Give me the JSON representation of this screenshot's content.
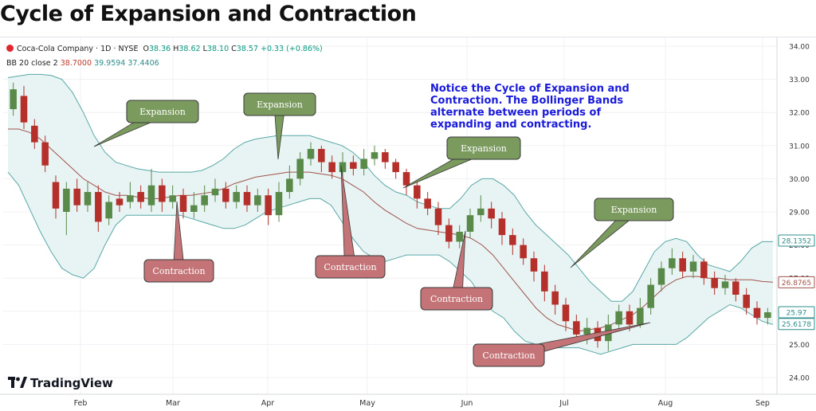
{
  "page_title": "Cycle of Expansion and Contraction",
  "legend": {
    "symbol": "Coca-Cola Company · 1D · NYSE",
    "o_label": "O",
    "o": "38.36",
    "h_label": "H",
    "h": "38.62",
    "l_label": "L",
    "l": "38.10",
    "c_label": "C",
    "c": "38.57",
    "change": "+0.33 (+0.86%)",
    "bb_label": "BB 20 close 2",
    "bb_mid": "38.7000",
    "bb_up": "39.9594",
    "bb_low": "37.4406"
  },
  "brand": "TradingView",
  "colors": {
    "up": "#5a8a4a",
    "down": "#b5302a",
    "band_fill": "#e8f4f4",
    "band_line": "#5aa7a7",
    "basis": "#a0524c",
    "note": "#1a1adb",
    "callout_green": "#7a9a5e",
    "callout_red": "#c47476"
  },
  "chart_data": {
    "type": "candlestick",
    "title": "Cycle of Expansion and Contraction",
    "ylim": [
      23.6,
      34.3
    ],
    "y_ticks": [
      "24.00",
      "25.00",
      "26.00",
      "27.00",
      "28.00",
      "29.00",
      "30.00",
      "31.00",
      "32.00",
      "33.00",
      "34.00"
    ],
    "x_ticks": [
      "Feb",
      "Mar",
      "Apr",
      "May",
      "Jun",
      "Jul",
      "Aug",
      "Sep"
    ],
    "price_labels": [
      {
        "text": "28.1352",
        "value": 28.1352,
        "color": "#2d8c8c"
      },
      {
        "text": "26.8765",
        "value": 26.8765,
        "color": "#a0524c"
      },
      {
        "text": "25.97",
        "value": 25.97,
        "color": "#2d8c8c"
      },
      {
        "text": "25.6178",
        "value": 25.6178,
        "color": "#2d8c8c"
      }
    ],
    "upper_band": [
      33.05,
      33.1,
      33.15,
      33.15,
      33.12,
      33.0,
      32.6,
      32.0,
      31.3,
      30.8,
      30.5,
      30.4,
      30.3,
      30.25,
      30.2,
      30.2,
      30.2,
      30.2,
      30.25,
      30.4,
      30.6,
      30.9,
      31.1,
      31.2,
      31.25,
      31.3,
      31.3,
      31.3,
      31.3,
      31.2,
      31.1,
      31.0,
      30.8,
      30.5,
      30.1,
      29.8,
      29.6,
      29.5,
      29.3,
      29.2,
      29.1,
      29.1,
      29.4,
      29.8,
      30.0,
      30.0,
      29.8,
      29.5,
      29.0,
      28.6,
      28.3,
      28.0,
      27.7,
      27.3,
      26.9,
      26.6,
      26.3,
      26.3,
      26.6,
      27.2,
      27.8,
      28.1,
      28.2,
      28.1,
      27.7,
      27.4,
      27.3,
      27.2,
      27.5,
      27.9,
      28.1,
      28.1
    ],
    "lower_band": [
      30.2,
      29.8,
      29.1,
      28.4,
      27.8,
      27.3,
      27.1,
      27.0,
      27.3,
      28.0,
      28.6,
      28.9,
      28.9,
      28.9,
      28.9,
      28.9,
      28.9,
      28.8,
      28.7,
      28.6,
      28.5,
      28.5,
      28.6,
      28.8,
      29.0,
      29.1,
      29.2,
      29.3,
      29.4,
      29.4,
      29.2,
      28.7,
      28.2,
      27.8,
      27.6,
      27.5,
      27.6,
      27.7,
      27.7,
      27.7,
      27.7,
      27.5,
      27.2,
      26.9,
      26.4,
      26.0,
      25.8,
      25.4,
      25.1,
      25.0,
      24.9,
      24.9,
      24.9,
      24.9,
      24.8,
      24.7,
      24.8,
      24.9,
      25.0,
      25.0,
      25.0,
      25.0,
      25.0,
      25.2,
      25.5,
      25.8,
      26.0,
      26.2,
      26.1,
      25.9,
      25.7,
      25.6
    ],
    "basis": [
      31.5,
      31.5,
      31.4,
      31.2,
      30.9,
      30.6,
      30.3,
      30.0,
      29.8,
      29.6,
      29.5,
      29.5,
      29.45,
      29.4,
      29.4,
      29.45,
      29.5,
      29.5,
      29.55,
      29.6,
      29.7,
      29.85,
      29.95,
      30.05,
      30.1,
      30.15,
      30.2,
      30.2,
      30.2,
      30.15,
      30.1,
      30.0,
      29.8,
      29.6,
      29.3,
      29.05,
      28.85,
      28.65,
      28.5,
      28.45,
      28.4,
      28.35,
      28.3,
      28.2,
      28.0,
      27.7,
      27.3,
      26.9,
      26.5,
      26.1,
      25.8,
      25.6,
      25.5,
      25.4,
      25.45,
      25.5,
      25.6,
      25.75,
      25.9,
      26.15,
      26.45,
      26.75,
      26.95,
      27.05,
      27.05,
      27.0,
      27.0,
      26.95,
      26.95,
      26.95,
      26.9,
      26.88
    ],
    "candles": [
      [
        32.1,
        32.7,
        32.9,
        31.9
      ],
      [
        32.5,
        31.7,
        32.8,
        31.5
      ],
      [
        31.6,
        31.1,
        31.8,
        30.9
      ],
      [
        31.1,
        30.4,
        31.3,
        30.2
      ],
      [
        29.9,
        29.1,
        30.1,
        28.8
      ],
      [
        29.0,
        29.7,
        29.9,
        28.3
      ],
      [
        29.7,
        29.2,
        30.0,
        29.0
      ],
      [
        29.2,
        29.6,
        29.9,
        29.0
      ],
      [
        29.6,
        28.7,
        29.8,
        28.4
      ],
      [
        28.8,
        29.3,
        29.5,
        28.6
      ],
      [
        29.4,
        29.2,
        29.6,
        29.0
      ],
      [
        29.3,
        29.5,
        29.9,
        29.1
      ],
      [
        29.6,
        29.3,
        29.8,
        29.1
      ],
      [
        29.2,
        29.8,
        30.3,
        29.0
      ],
      [
        29.8,
        29.3,
        30.0,
        29.0
      ],
      [
        29.3,
        29.5,
        29.8,
        29.1
      ],
      [
        29.5,
        29.0,
        29.7,
        28.8
      ],
      [
        29.0,
        29.2,
        29.6,
        28.8
      ],
      [
        29.2,
        29.5,
        29.8,
        29.0
      ],
      [
        29.5,
        29.7,
        30.0,
        29.3
      ],
      [
        29.7,
        29.3,
        29.9,
        29.1
      ],
      [
        29.3,
        29.6,
        29.8,
        29.1
      ],
      [
        29.6,
        29.2,
        29.8,
        29.0
      ],
      [
        29.2,
        29.5,
        29.7,
        29.0
      ],
      [
        29.5,
        28.9,
        29.7,
        28.6
      ],
      [
        28.9,
        29.6,
        29.9,
        28.7
      ],
      [
        29.6,
        30.0,
        30.4,
        29.4
      ],
      [
        30.0,
        30.6,
        30.8,
        29.8
      ],
      [
        30.6,
        30.9,
        31.1,
        30.4
      ],
      [
        30.9,
        30.5,
        31.0,
        30.2
      ],
      [
        30.5,
        30.2,
        30.7,
        30.0
      ],
      [
        30.2,
        30.5,
        30.8,
        30.0
      ],
      [
        30.5,
        30.3,
        30.7,
        30.1
      ],
      [
        30.3,
        30.6,
        30.9,
        30.1
      ],
      [
        30.6,
        30.8,
        31.0,
        30.4
      ],
      [
        30.8,
        30.5,
        30.9,
        30.3
      ],
      [
        30.5,
        30.2,
        30.6,
        30.0
      ],
      [
        30.2,
        29.8,
        30.3,
        29.5
      ],
      [
        29.8,
        29.4,
        29.9,
        29.1
      ],
      [
        29.4,
        29.1,
        29.6,
        28.9
      ],
      [
        29.1,
        28.6,
        29.3,
        28.3
      ],
      [
        28.6,
        28.1,
        28.8,
        27.9
      ],
      [
        28.1,
        28.4,
        28.6,
        27.9
      ],
      [
        28.4,
        28.9,
        29.1,
        28.2
      ],
      [
        28.9,
        29.1,
        29.5,
        28.7
      ],
      [
        29.1,
        28.8,
        29.3,
        28.5
      ],
      [
        28.8,
        28.3,
        29.0,
        28.0
      ],
      [
        28.3,
        28.0,
        28.5,
        27.7
      ],
      [
        28.0,
        27.6,
        28.2,
        27.4
      ],
      [
        27.6,
        27.2,
        27.8,
        26.9
      ],
      [
        27.2,
        26.6,
        27.4,
        26.3
      ],
      [
        26.6,
        26.2,
        26.8,
        25.9
      ],
      [
        26.2,
        25.7,
        26.4,
        25.4
      ],
      [
        25.7,
        25.3,
        25.9,
        25.1
      ],
      [
        25.3,
        25.5,
        25.8,
        25.0
      ],
      [
        25.5,
        25.1,
        25.7,
        24.9
      ],
      [
        25.1,
        25.6,
        25.9,
        24.8
      ],
      [
        25.6,
        26.0,
        26.2,
        25.4
      ],
      [
        26.0,
        25.6,
        26.2,
        25.4
      ],
      [
        25.6,
        26.1,
        26.4,
        25.5
      ],
      [
        26.1,
        26.8,
        27.0,
        25.9
      ],
      [
        26.8,
        27.3,
        27.5,
        26.6
      ],
      [
        27.3,
        27.6,
        27.9,
        27.1
      ],
      [
        27.6,
        27.2,
        27.8,
        27.0
      ],
      [
        27.2,
        27.5,
        27.7,
        27.0
      ],
      [
        27.5,
        27.0,
        27.6,
        26.8
      ],
      [
        27.0,
        26.7,
        27.2,
        26.5
      ],
      [
        26.7,
        26.9,
        27.1,
        26.5
      ],
      [
        26.9,
        26.5,
        27.0,
        26.3
      ],
      [
        26.5,
        26.1,
        26.7,
        25.9
      ],
      [
        26.1,
        25.8,
        26.3,
        25.6
      ],
      [
        25.8,
        25.97,
        26.1,
        25.6
      ]
    ]
  },
  "annotations": {
    "note": "Notice the Cycle of Expansion and Contraction. The Bollinger Bands alternate between periods of expanding and contracting.",
    "expansions": [
      "Expansion",
      "Expansion",
      "Expansion",
      "Expansion"
    ],
    "contractions": [
      "Contraction",
      "Contraction",
      "Contraction",
      "Contraction"
    ]
  }
}
